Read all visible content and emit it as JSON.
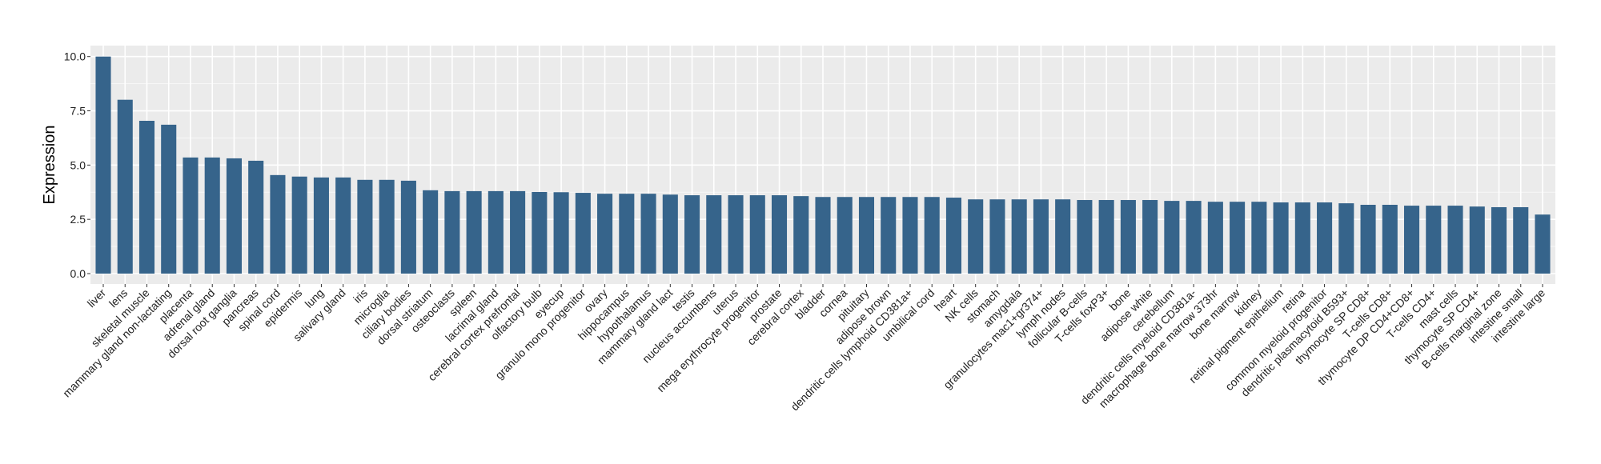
{
  "chart_data": {
    "type": "bar",
    "title": "",
    "xlabel": "",
    "ylabel": "Expression",
    "ylim": [
      -0.45,
      10.45
    ],
    "yticks": [
      "0.0",
      "2.5",
      "5.0",
      "7.5",
      "10.0"
    ],
    "ytick_values": [
      0,
      2.5,
      5,
      7.5,
      10
    ],
    "grid": true,
    "bar_color": "#36648b",
    "panel_color": "#ebebeb",
    "categories": [
      "liver",
      "lens",
      "skeletal muscle",
      "mammary gland non-lactating",
      "placenta",
      "adrenal gland",
      "dorsal root ganglia",
      "pancreas",
      "spinal cord",
      "epidermis",
      "lung",
      "salivary gland",
      "iris",
      "microglia",
      "ciliary bodies",
      "dorsal striatum",
      "osteoclasts",
      "spleen",
      "lacrimal gland",
      "cerebral cortex prefrontal",
      "olfactory bulb",
      "eyecup",
      "granulo mono progenitor",
      "ovary",
      "hippocampus",
      "hypothalamus",
      "mammary gland  lact",
      "testis",
      "nucleus accumbens",
      "uterus",
      "mega erythrocyte progenitor",
      "prostate",
      "cerebral cortex",
      "bladder",
      "cornea",
      "pituitary",
      "adipose brown",
      "dendritic cells lymphoid CD381a+",
      "umbilical cord",
      "heart",
      "NK cells",
      "stomach",
      "amygdala",
      "granulocytes mac1+gr374+",
      "lymph nodes",
      "follicular B-cells",
      "T-cells foxP3+",
      "bone",
      "adipose white",
      "cerebellum",
      "dendritic cells myeloid CD381a-",
      "macrophage bone marrow 373hr",
      "bone marrow",
      "kidney",
      "retinal pigment epithelium",
      "retina",
      "common myeloid progenitor",
      "dendritic plasmacytoid B593+",
      "thymocyte SP CD8+",
      "T-cells CD8+",
      "thymocyte DP CD4+CD8+",
      "T-cells CD4+",
      "mast cells",
      "thymocyte SP CD4+",
      "B-cells marginal zone",
      "intestine small",
      "intestine large"
    ],
    "values": [
      10.0,
      8.01,
      7.04,
      6.86,
      5.35,
      5.35,
      5.31,
      5.2,
      4.54,
      4.47,
      4.43,
      4.43,
      4.32,
      4.32,
      4.28,
      3.84,
      3.8,
      3.8,
      3.8,
      3.8,
      3.76,
      3.75,
      3.72,
      3.68,
      3.68,
      3.68,
      3.64,
      3.61,
      3.61,
      3.61,
      3.61,
      3.61,
      3.57,
      3.53,
      3.53,
      3.53,
      3.53,
      3.53,
      3.53,
      3.5,
      3.42,
      3.42,
      3.42,
      3.42,
      3.42,
      3.39,
      3.39,
      3.39,
      3.39,
      3.35,
      3.35,
      3.31,
      3.31,
      3.31,
      3.28,
      3.28,
      3.28,
      3.24,
      3.17,
      3.17,
      3.13,
      3.13,
      3.13,
      3.09,
      3.06,
      3.06,
      2.72
    ]
  }
}
